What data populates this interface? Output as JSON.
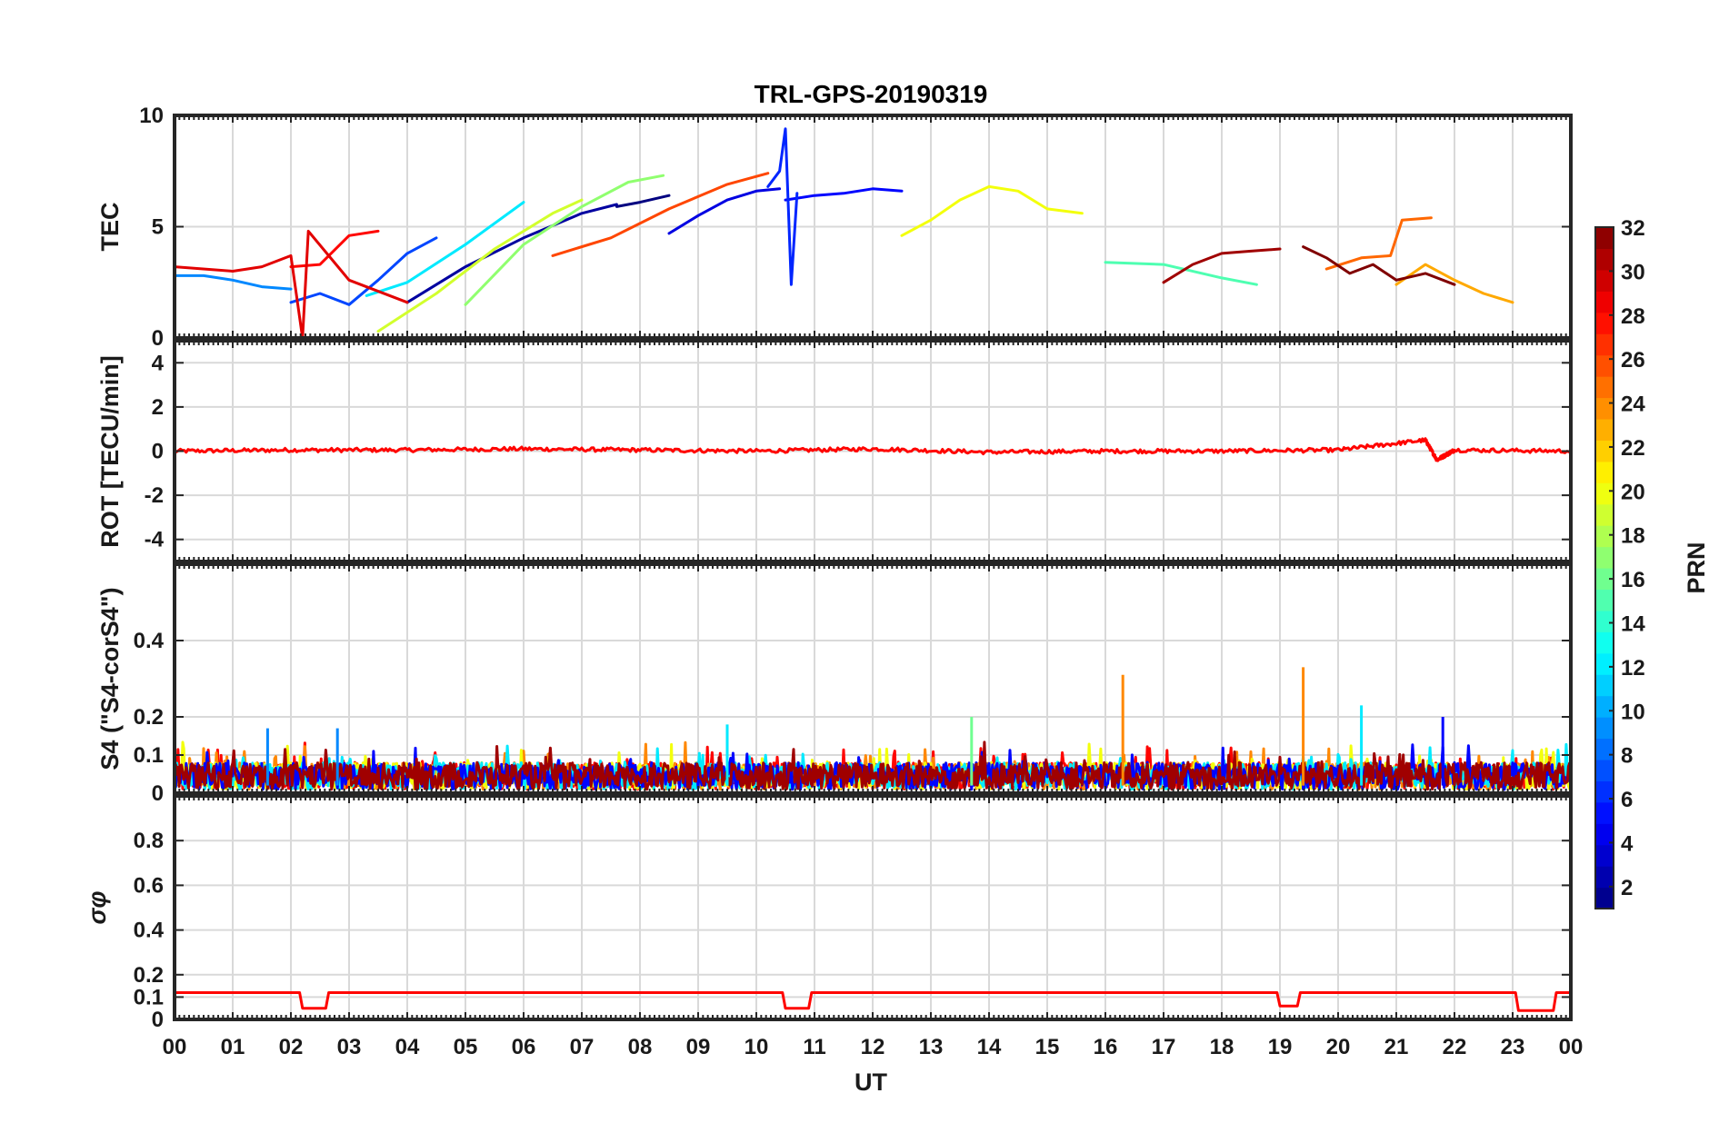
{
  "chart_data": {
    "type": "line",
    "title": "TRL-GPS-20190319",
    "xlabel": "UT",
    "x_tick_labels": [
      "00",
      "01",
      "02",
      "03",
      "04",
      "05",
      "06",
      "07",
      "08",
      "09",
      "10",
      "11",
      "12",
      "13",
      "14",
      "15",
      "16",
      "17",
      "18",
      "19",
      "20",
      "21",
      "22",
      "23",
      "00"
    ],
    "xlim": [
      0,
      24
    ],
    "panels": [
      {
        "id": "tec",
        "ylabel": "TEC",
        "ylim": [
          0,
          10
        ],
        "yticks": [
          0,
          5,
          10
        ],
        "ytick_labels": [
          "0",
          "5",
          "10"
        ],
        "series": [
          {
            "name": "PRN 01",
            "prn": 1,
            "x": [
              7.6,
              8.0,
              8.5
            ],
            "y": [
              5.9,
              6.1,
              6.4
            ]
          },
          {
            "name": "PRN 02",
            "prn": 2,
            "x": [
              4.0,
              5.0,
              6.0,
              7.0,
              7.6
            ],
            "y": [
              1.6,
              3.2,
              4.5,
              5.6,
              6.0
            ]
          },
          {
            "name": "PRN 04",
            "prn": 4,
            "x": [
              8.5,
              9.0,
              9.5,
              10.0,
              10.4
            ],
            "y": [
              4.7,
              5.5,
              6.2,
              6.6,
              6.7
            ]
          },
          {
            "name": "PRN 05",
            "prn": 5,
            "x": [
              10.5,
              11.0,
              11.5,
              12.0,
              12.5
            ],
            "y": [
              6.2,
              6.4,
              6.5,
              6.7,
              6.6
            ]
          },
          {
            "name": "PRN 06",
            "prn": 6,
            "x": [
              10.2,
              10.4,
              10.5,
              10.6,
              10.7
            ],
            "y": [
              6.8,
              7.5,
              9.4,
              2.4,
              6.5
            ]
          },
          {
            "name": "PRN 07",
            "prn": 7,
            "x": [
              2.0,
              2.5,
              3.0,
              3.5,
              4.0,
              4.5
            ],
            "y": [
              1.6,
              2.0,
              1.5,
              2.6,
              3.8,
              4.5
            ]
          },
          {
            "name": "PRN 09",
            "prn": 9,
            "x": [
              0.0,
              0.5,
              1.0,
              1.5,
              2.0
            ],
            "y": [
              2.8,
              2.8,
              2.6,
              2.3,
              2.2
            ]
          },
          {
            "name": "PRN 12",
            "prn": 12,
            "x": [
              3.3,
              4.0,
              5.0,
              6.0
            ],
            "y": [
              1.9,
              2.5,
              4.2,
              6.1
            ]
          },
          {
            "name": "PRN 15",
            "prn": 15,
            "x": [
              16.0,
              17.0,
              18.0,
              18.6
            ],
            "y": [
              3.4,
              3.3,
              2.7,
              2.4
            ]
          },
          {
            "name": "PRN 17",
            "prn": 17,
            "x": [
              5.0,
              6.0,
              7.0,
              7.8,
              8.4
            ],
            "y": [
              1.5,
              4.2,
              5.9,
              7.0,
              7.3
            ]
          },
          {
            "name": "PRN 19",
            "prn": 19,
            "x": [
              3.5,
              4.5,
              5.5,
              6.5,
              7.0
            ],
            "y": [
              0.3,
              2.0,
              4.0,
              5.6,
              6.2
            ]
          },
          {
            "name": "PRN 20",
            "prn": 20,
            "x": [
              12.5,
              13.0,
              13.5,
              14.0,
              14.5,
              15.0,
              15.6
            ],
            "y": [
              4.6,
              5.3,
              6.2,
              6.8,
              6.6,
              5.8,
              5.6
            ]
          },
          {
            "name": "PRN 23",
            "prn": 23,
            "x": [
              21.0,
              21.5,
              22.0,
              22.5,
              23.0
            ],
            "y": [
              2.4,
              3.3,
              2.6,
              2.0,
              1.6
            ]
          },
          {
            "name": "PRN 25",
            "prn": 25,
            "x": [
              19.8,
              20.4,
              20.9,
              21.1,
              21.6
            ],
            "y": [
              3.1,
              3.6,
              3.7,
              5.3,
              5.4
            ]
          },
          {
            "name": "PRN 26",
            "prn": 26,
            "x": [
              6.5,
              7.5,
              8.5,
              9.5,
              10.2
            ],
            "y": [
              3.7,
              4.5,
              5.8,
              6.9,
              7.4
            ]
          },
          {
            "name": "PRN 28",
            "prn": 28,
            "x": [
              2.0,
              2.5,
              3.0,
              3.5
            ],
            "y": [
              3.2,
              3.3,
              4.6,
              4.8
            ]
          },
          {
            "name": "PRN 29",
            "prn": 29,
            "x": [
              0.0,
              1.0,
              1.5,
              2.0,
              2.2,
              2.3,
              3.0,
              4.0
            ],
            "y": [
              3.2,
              3.0,
              3.2,
              3.7,
              0.0,
              4.8,
              2.6,
              1.6
            ]
          },
          {
            "name": "PRN 31",
            "prn": 31,
            "x": [
              17.0,
              17.5,
              18.0,
              18.5,
              19.0
            ],
            "y": [
              2.5,
              3.3,
              3.8,
              3.9,
              4.0
            ]
          },
          {
            "name": "PRN 32",
            "prn": 32,
            "x": [
              19.4,
              19.8,
              20.2,
              20.6,
              21.0,
              21.5,
              22.0
            ],
            "y": [
              4.1,
              3.6,
              2.9,
              3.3,
              2.6,
              2.9,
              2.4
            ]
          }
        ]
      },
      {
        "id": "rot",
        "ylabel": "ROT [TECU/min]",
        "ylim": [
          -5,
          5
        ],
        "yticks": [
          -4,
          -2,
          0,
          2,
          4
        ],
        "ytick_labels": [
          "-4",
          "-2",
          "0",
          "2",
          "4"
        ],
        "series": [
          {
            "name": "ROT all PRNs",
            "prn": 28,
            "x": [
              0,
              2,
              4,
              6,
              8,
              10,
              12,
              14,
              16,
              18,
              20,
              21.5,
              21.7,
              22,
              24
            ],
            "y": [
              0.0,
              0.05,
              0.05,
              0.1,
              0.05,
              0.0,
              0.1,
              -0.05,
              0.0,
              0.0,
              0.05,
              0.5,
              -0.4,
              0.05,
              0.0
            ]
          }
        ]
      },
      {
        "id": "s4",
        "ylabel": "S4 (\"S4-corS4\")",
        "ylim": [
          0,
          0.6
        ],
        "yticks": [
          0,
          0.1,
          0.2,
          0.4
        ],
        "ytick_labels": [
          "0",
          "0.1",
          "0.2",
          "0.4"
        ],
        "spikes": [
          {
            "x": 16.3,
            "y": 0.31,
            "prn": 24
          },
          {
            "x": 19.4,
            "y": 0.33,
            "prn": 24
          },
          {
            "x": 20.4,
            "y": 0.23,
            "prn": 12
          },
          {
            "x": 21.8,
            "y": 0.2,
            "prn": 5
          },
          {
            "x": 13.7,
            "y": 0.2,
            "prn": 16
          },
          {
            "x": 9.5,
            "y": 0.18,
            "prn": 12
          },
          {
            "x": 1.6,
            "y": 0.17,
            "prn": 9
          },
          {
            "x": 2.8,
            "y": 0.17,
            "prn": 9
          }
        ]
      },
      {
        "id": "sigma_phi",
        "ylabel": "σφ",
        "ylim": [
          0,
          1
        ],
        "yticks": [
          0,
          0.1,
          0.2,
          0.4,
          0.6,
          0.8
        ],
        "ytick_labels": [
          "0",
          "0.1",
          "0.2",
          "0.4",
          "0.6",
          "0.8"
        ],
        "series": [
          {
            "name": "sigma_phi",
            "prn": 28,
            "x": [
              0,
              2.15,
              2.2,
              2.6,
              2.65,
              10.45,
              10.5,
              10.9,
              10.95,
              18.95,
              19.0,
              19.3,
              19.35,
              23.05,
              23.1,
              23.7,
              23.75,
              24
            ],
            "y": [
              0.12,
              0.12,
              0.05,
              0.05,
              0.12,
              0.12,
              0.05,
              0.05,
              0.12,
              0.12,
              0.06,
              0.06,
              0.12,
              0.12,
              0.04,
              0.04,
              0.12,
              0.12
            ]
          }
        ]
      }
    ],
    "colorbar": {
      "label": "PRN",
      "min": 1,
      "max": 32,
      "tick_labels": [
        "2",
        "4",
        "6",
        "8",
        "10",
        "12",
        "14",
        "16",
        "18",
        "20",
        "22",
        "24",
        "26",
        "28",
        "30",
        "32"
      ],
      "colormap": "jet"
    }
  }
}
